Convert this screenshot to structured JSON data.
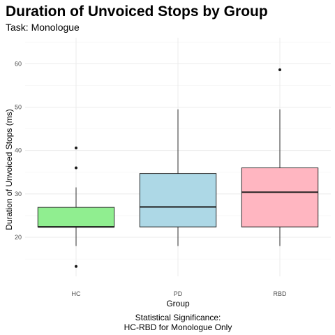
{
  "chart_data": {
    "type": "box",
    "title": "Duration of Unvoiced Stops by Group",
    "subtitle": "Task: Monologue",
    "xlabel": "Group",
    "ylabel": "Duration of Unvoiced Stops (ms)",
    "caption_lines": [
      "Statistical Significance:",
      "HC-RBD for Monologue Only"
    ],
    "ylim": [
      11,
      66
    ],
    "yticks": [
      20,
      30,
      40,
      50,
      60
    ],
    "grid": true,
    "categories": [
      "HC",
      "PD",
      "RBD"
    ],
    "boxes": [
      {
        "group": "HC",
        "color": "#90EE90",
        "whisker_low": 18,
        "q1": 22.4,
        "median": 22.4,
        "q3": 26.9,
        "whisker_high": 31.5,
        "outliers": [
          13.3,
          36,
          40.6
        ]
      },
      {
        "group": "PD",
        "color": "#ADD8E6",
        "whisker_low": 18,
        "q1": 22.4,
        "median": 27,
        "q3": 34.7,
        "whisker_high": 49.5,
        "outliers": []
      },
      {
        "group": "RBD",
        "color": "#FFB6C1",
        "whisker_low": 18,
        "q1": 22.4,
        "median": 30.4,
        "q3": 36,
        "whisker_high": 49.5,
        "outliers": [
          58.6
        ]
      }
    ]
  }
}
